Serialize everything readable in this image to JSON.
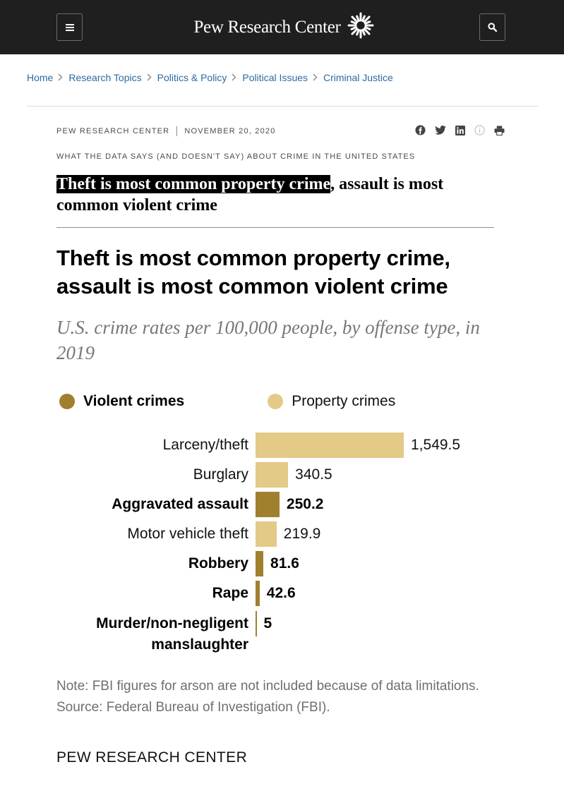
{
  "header": {
    "logo_text": "Pew Research Center",
    "bg_color": "#1f1f1f"
  },
  "breadcrumb": [
    "Home",
    "Research Topics",
    "Politics & Policy",
    "Political Issues",
    "Criminal Justice"
  ],
  "meta": {
    "source": "PEW RESEARCH CENTER",
    "date": "NOVEMBER 20, 2020",
    "share_icons": [
      "facebook-icon",
      "twitter-icon",
      "linkedin-icon",
      "info-icon",
      "print-icon"
    ]
  },
  "kicker": "WHAT THE DATA SAYS (AND DOESN'T SAY) ABOUT CRIME IN THE UNITED STATES",
  "headline": {
    "highlighted": "Theft is most common property crime",
    "rest": ", assault is most common violent crime"
  },
  "chart_data": {
    "type": "bar",
    "orientation": "horizontal",
    "title": "Theft is most common property crime, assault is most common violent crime",
    "subtitle": "U.S. crime rates per 100,000 people, by offense type, in 2019",
    "legend": [
      {
        "key": "violent",
        "label": "Violent crimes",
        "color": "#a0802e"
      },
      {
        "key": "property",
        "label": "Property crimes",
        "color": "#e3ca86"
      }
    ],
    "legend_placement": "top-left",
    "categories": [
      "Larceny/theft",
      "Burglary",
      "Aggravated assault",
      "Motor vehicle theft",
      "Robbery",
      "Rape",
      "Murder/non-negligent manslaughter"
    ],
    "category_lines": [
      [
        "Larceny/theft"
      ],
      [
        "Burglary"
      ],
      [
        "Aggravated assault"
      ],
      [
        "Motor vehicle theft"
      ],
      [
        "Robbery"
      ],
      [
        "Rape"
      ],
      [
        "Murder/non-negligent",
        "manslaughter"
      ]
    ],
    "values": [
      1549.5,
      340.5,
      250.2,
      219.9,
      81.6,
      42.6,
      5
    ],
    "value_labels": [
      "1,549.5",
      "340.5",
      "250.2",
      "219.9",
      "81.6",
      "42.6",
      "5"
    ],
    "groups": [
      "property",
      "property",
      "violent",
      "property",
      "violent",
      "violent",
      "violent"
    ],
    "xlim": [
      0,
      1549.5
    ],
    "grid": false
  },
  "notes": {
    "note": "Note: FBI figures for arson are not included because of data limitations.",
    "source": "Source: Federal Bureau of Investigation (FBI).",
    "brand": "PEW RESEARCH CENTER"
  }
}
